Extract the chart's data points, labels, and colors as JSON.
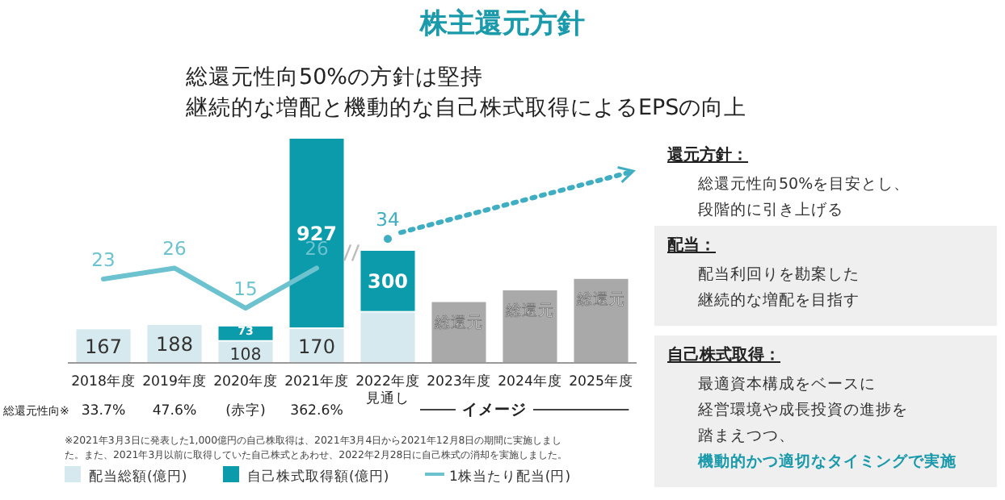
{
  "chart_data": [
    {
      "type": "bar",
      "title": "株主還元方針",
      "subtitle": "総還元性向50%の方針は堅持",
      "categories": [
        "2018年度",
        "2019年度",
        "2020年度",
        "2021年度",
        "2022年度見通し",
        "2023年度",
        "2024年度",
        "2025年度"
      ],
      "stacked": true,
      "legend": "bottom",
      "series": [
        {
          "name": "配当総額(億円)",
          "color": "#d5e9ef",
          "values": [
            167,
            188,
            108,
            170,
            250,
            null,
            null,
            null
          ],
          "value_labels": [
            "167",
            "188",
            "108",
            "170",
            null,
            null,
            null,
            null
          ]
        },
        {
          "name": "自己株式取得額(億円)",
          "color": "#0b9bab",
          "values": [
            null,
            null,
            73,
            927,
            300,
            null,
            null,
            null
          ],
          "value_labels": [
            null,
            null,
            "73",
            "927",
            "300",
            null,
            null,
            null
          ]
        },
        {
          "color": "#a9a9a9",
          "values": [
            null,
            null,
            null,
            null,
            null,
            300,
            357,
            413
          ],
          "value_labels": [
            null,
            null,
            null,
            null,
            null,
            "総還元",
            "総還元",
            "総還元"
          ]
        },
        {
          "name": "1株当たり配当(円)",
          "type": "line",
          "axis": "y2",
          "color": "#6cc2cf",
          "values": [
            23,
            26,
            15,
            26,
            null,
            null,
            null,
            null
          ],
          "value_labels": [
            "23",
            "26",
            "15",
            "26",
            null,
            null,
            null,
            null
          ]
        },
        {
          "type": "line",
          "axis": "y2",
          "line_style": "dotted",
          "marker": "circle",
          "color": "#40aec2",
          "values": [
            null,
            null,
            null,
            null,
            34,
            null,
            null,
            null
          ],
          "value_labels": [
            null,
            null,
            null,
            null,
            "34",
            null,
            null,
            null
          ]
        }
      ],
      "annotations": [
        "継続的な増配と機動的な自己株式取得によるEPSの向上",
        "総還元性向※",
        "33.7%",
        "47.6%",
        "(赤字)",
        "362.6%",
        "イメージ",
        "※2021年3月3日に発表した1,000億円の自己株取得は、2021年3月4日から2021年12月8日の期間に実施しまし",
        "た。また、2021年3月以前に取得していた自己株式とあわせ、2022年2月28日に自己株式の消却を実施しました。"
      ]
    },
    {
      "type": "other",
      "annotations": [
        "還元方針：",
        "総還元性向50%を目安とし、",
        "段階的に引き上げる",
        "配当：",
        "配当利回りを勘案した",
        "継続的な増配を目指す",
        "自己株式取得：",
        "最適資本構成をベースに",
        "経営環境や成長投資の進捗を",
        "踏まえつつ、",
        "機動的かつ適切なタイミングで実施"
      ]
    }
  ]
}
